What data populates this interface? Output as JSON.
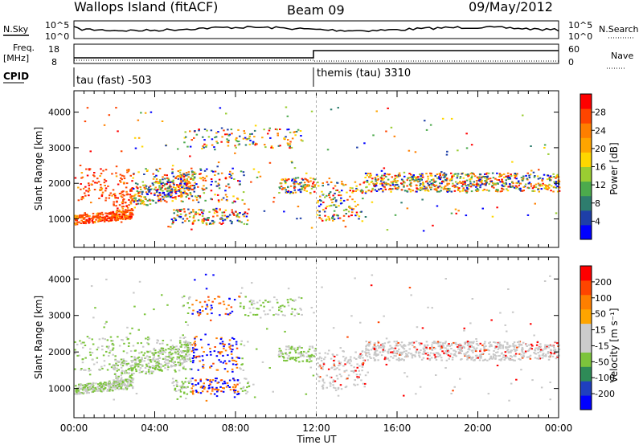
{
  "header": {
    "station": "Wallops Island (fitACF)",
    "beam": "Beam 09",
    "date": "09/May/2012"
  },
  "left_labels": {
    "nsky": "N.Sky",
    "freq": "Freq.",
    "freq_unit": "[MHz]",
    "cpid": "CPID"
  },
  "right_labels": {
    "nsearch": "N.Search",
    "nave": "Nave"
  },
  "noise_panel": {
    "left_ticks": [
      "10^5",
      "10^0"
    ],
    "right_ticks": [
      "10^5",
      "10^0"
    ]
  },
  "freq_panel": {
    "left_ticks": [
      "18",
      "8"
    ],
    "right_ticks": [
      "60",
      "0"
    ]
  },
  "cpid_panel": {
    "segment_1": "tau (fast) -503",
    "segment_2": "themis (tau) 3310"
  },
  "colors": {
    "power_scale": [
      "#0000ff",
      "#1e3fa8",
      "#2e7d6e",
      "#4caa4c",
      "#9acd32",
      "#ffd700",
      "#ffa500",
      "#ff7f00",
      "#ff4500",
      "#ff0000"
    ],
    "velocity_scale": [
      "#0000ff",
      "#1f3fbf",
      "#2e8b57",
      "#7cc43c",
      "#cccccc",
      "#cccccc",
      "#ffa500",
      "#ff7f00",
      "#ff4500",
      "#ff0000"
    ],
    "ground_scatter": "#c8c8c8"
  },
  "chart_data": [
    {
      "type": "heatmap",
      "name": "power",
      "ylabel": "Slant Range [km]",
      "xlabel": "",
      "y_ticks": [
        "1000",
        "2000",
        "3000",
        "4000"
      ],
      "ylim": [
        200,
        4600
      ],
      "colorbar_label": "Power [dB]",
      "colorbar_ticks": [
        "4",
        "8",
        "12",
        "16",
        "20",
        "24",
        "28"
      ],
      "colorbar_range": [
        0,
        32
      ]
    },
    {
      "type": "heatmap",
      "name": "velocity",
      "ylabel": "Slant Range [km]",
      "xlabel": "Time UT",
      "x_ticks": [
        "00:00",
        "04:00",
        "08:00",
        "12:00",
        "16:00",
        "20:00",
        "00:00"
      ],
      "y_ticks": [
        "1000",
        "2000",
        "3000",
        "4000"
      ],
      "ylim": [
        200,
        4600
      ],
      "colorbar_label": "Velocity [m s⁻¹]",
      "colorbar_ticks": [
        "200",
        "100",
        "50",
        "15",
        "-15",
        "-50",
        "-100",
        "-200"
      ],
      "colorbar_range": [
        -250,
        250
      ]
    }
  ]
}
